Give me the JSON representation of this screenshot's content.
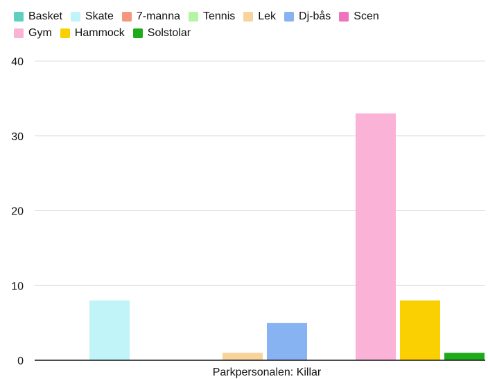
{
  "chart_data": {
    "type": "bar",
    "categories": [
      "Parkpersonalen: Killar"
    ],
    "series": [
      {
        "name": "Basket",
        "values": [
          0
        ],
        "color": "#5ecfc0"
      },
      {
        "name": "Skate",
        "values": [
          8
        ],
        "color": "#c0f4f8"
      },
      {
        "name": "7-manna",
        "values": [
          0
        ],
        "color": "#f4977e"
      },
      {
        "name": "Tennis",
        "values": [
          0
        ],
        "color": "#b3f5a2"
      },
      {
        "name": "Lek",
        "values": [
          1
        ],
        "color": "#f8d49c"
      },
      {
        "name": "Dj-bås",
        "values": [
          5
        ],
        "color": "#88b3f2"
      },
      {
        "name": "Scen",
        "values": [
          0
        ],
        "color": "#ee72be"
      },
      {
        "name": "Gym",
        "values": [
          33
        ],
        "color": "#fab2d6"
      },
      {
        "name": "Hammock",
        "values": [
          8
        ],
        "color": "#fad002"
      },
      {
        "name": "Solstolar",
        "values": [
          1
        ],
        "color": "#1faa1a"
      }
    ],
    "ylim": [
      0,
      40
    ],
    "yticks": [
      0,
      10,
      20,
      30,
      40
    ],
    "xlabel": "Parkpersonalen: Killar",
    "ylabel": "",
    "title": "",
    "grid": true,
    "legend_position": "top"
  }
}
